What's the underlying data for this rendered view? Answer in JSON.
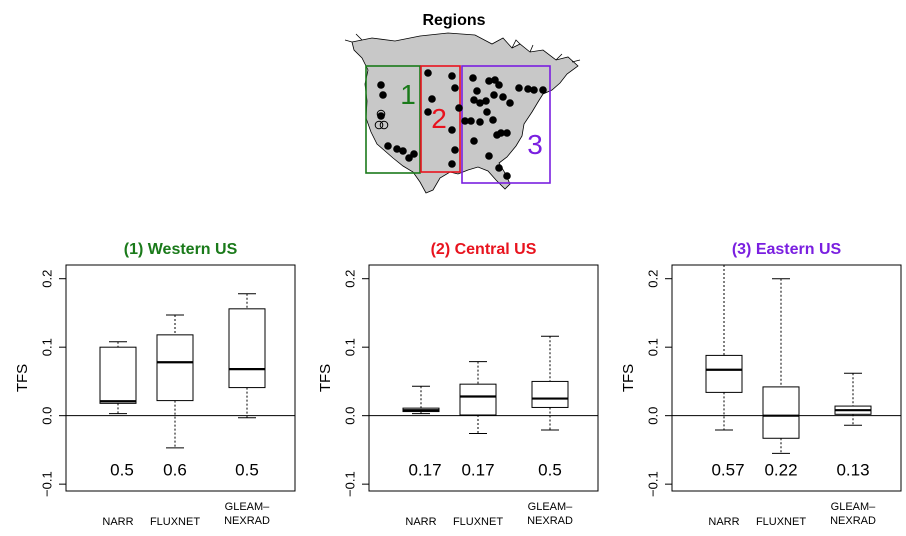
{
  "map": {
    "title": "Regions",
    "region_labels": [
      "1",
      "2",
      "3"
    ],
    "region_colors": [
      "#1a7a1a",
      "#e8131e",
      "#7a1fe0"
    ],
    "land_color": "#c8c8c8"
  },
  "chart_data": [
    {
      "type": "box",
      "title": "(1) Western US",
      "title_color": "#1a7a1a",
      "ylabel": "TFS",
      "ylim": [
        -0.11,
        0.22
      ],
      "yticks": [
        -0.1,
        0.0,
        0.1,
        0.2
      ],
      "ytick_labels": [
        "−0.1",
        "0.0",
        "0.1",
        "0.2"
      ],
      "categories": [
        "NARR",
        "FLUXNET",
        "GLEAM–\nNEXRAD"
      ],
      "boxes": [
        {
          "min": 0.003,
          "q1": 0.018,
          "median": 0.021,
          "q3": 0.1,
          "max": 0.108
        },
        {
          "min": -0.047,
          "q1": 0.022,
          "median": 0.078,
          "q3": 0.118,
          "max": 0.147
        },
        {
          "min": -0.003,
          "q1": 0.041,
          "median": 0.068,
          "q3": 0.156,
          "max": 0.178
        }
      ],
      "annotations": [
        "0.5",
        "0.6",
        "0.5"
      ],
      "annotation_y": -0.08
    },
    {
      "type": "box",
      "title": "(2) Central US",
      "title_color": "#e8131e",
      "ylabel": "TFS",
      "ylim": [
        -0.11,
        0.22
      ],
      "yticks": [
        -0.1,
        0.0,
        0.1,
        0.2
      ],
      "ytick_labels": [
        "−0.1",
        "0.0",
        "0.1",
        "0.2"
      ],
      "categories": [
        "NARR",
        "FLUXNET",
        "GLEAM–\nNEXRAD"
      ],
      "boxes": [
        {
          "min": 0.003,
          "q1": 0.006,
          "median": 0.008,
          "q3": 0.011,
          "max": 0.043
        },
        {
          "min": -0.026,
          "q1": 0.001,
          "median": 0.028,
          "q3": 0.046,
          "max": 0.079
        },
        {
          "min": -0.021,
          "q1": 0.012,
          "median": 0.025,
          "q3": 0.05,
          "max": 0.116
        }
      ],
      "annotations": [
        "0.17",
        "0.17",
        "0.5"
      ],
      "annotation_y": -0.08
    },
    {
      "type": "box",
      "title": "(3) Eastern US",
      "title_color": "#7a1fe0",
      "ylabel": "TFS",
      "ylim": [
        -0.11,
        0.22
      ],
      "yticks": [
        -0.1,
        0.0,
        0.1,
        0.2
      ],
      "ytick_labels": [
        "−0.1",
        "0.0",
        "0.1",
        "0.2"
      ],
      "categories": [
        "NARR",
        "FLUXNET",
        "GLEAM–\nNEXRAD"
      ],
      "boxes": [
        {
          "min": -0.021,
          "q1": 0.034,
          "median": 0.067,
          "q3": 0.088,
          "max": 0.23
        },
        {
          "min": -0.055,
          "q1": -0.033,
          "median": 0.0,
          "q3": 0.042,
          "max": 0.2
        },
        {
          "min": -0.014,
          "q1": 0.002,
          "median": 0.008,
          "q3": 0.014,
          "max": 0.062
        }
      ],
      "annotations": [
        "0.57",
        "0.22",
        "0.13"
      ],
      "annotation_y": -0.08
    }
  ]
}
